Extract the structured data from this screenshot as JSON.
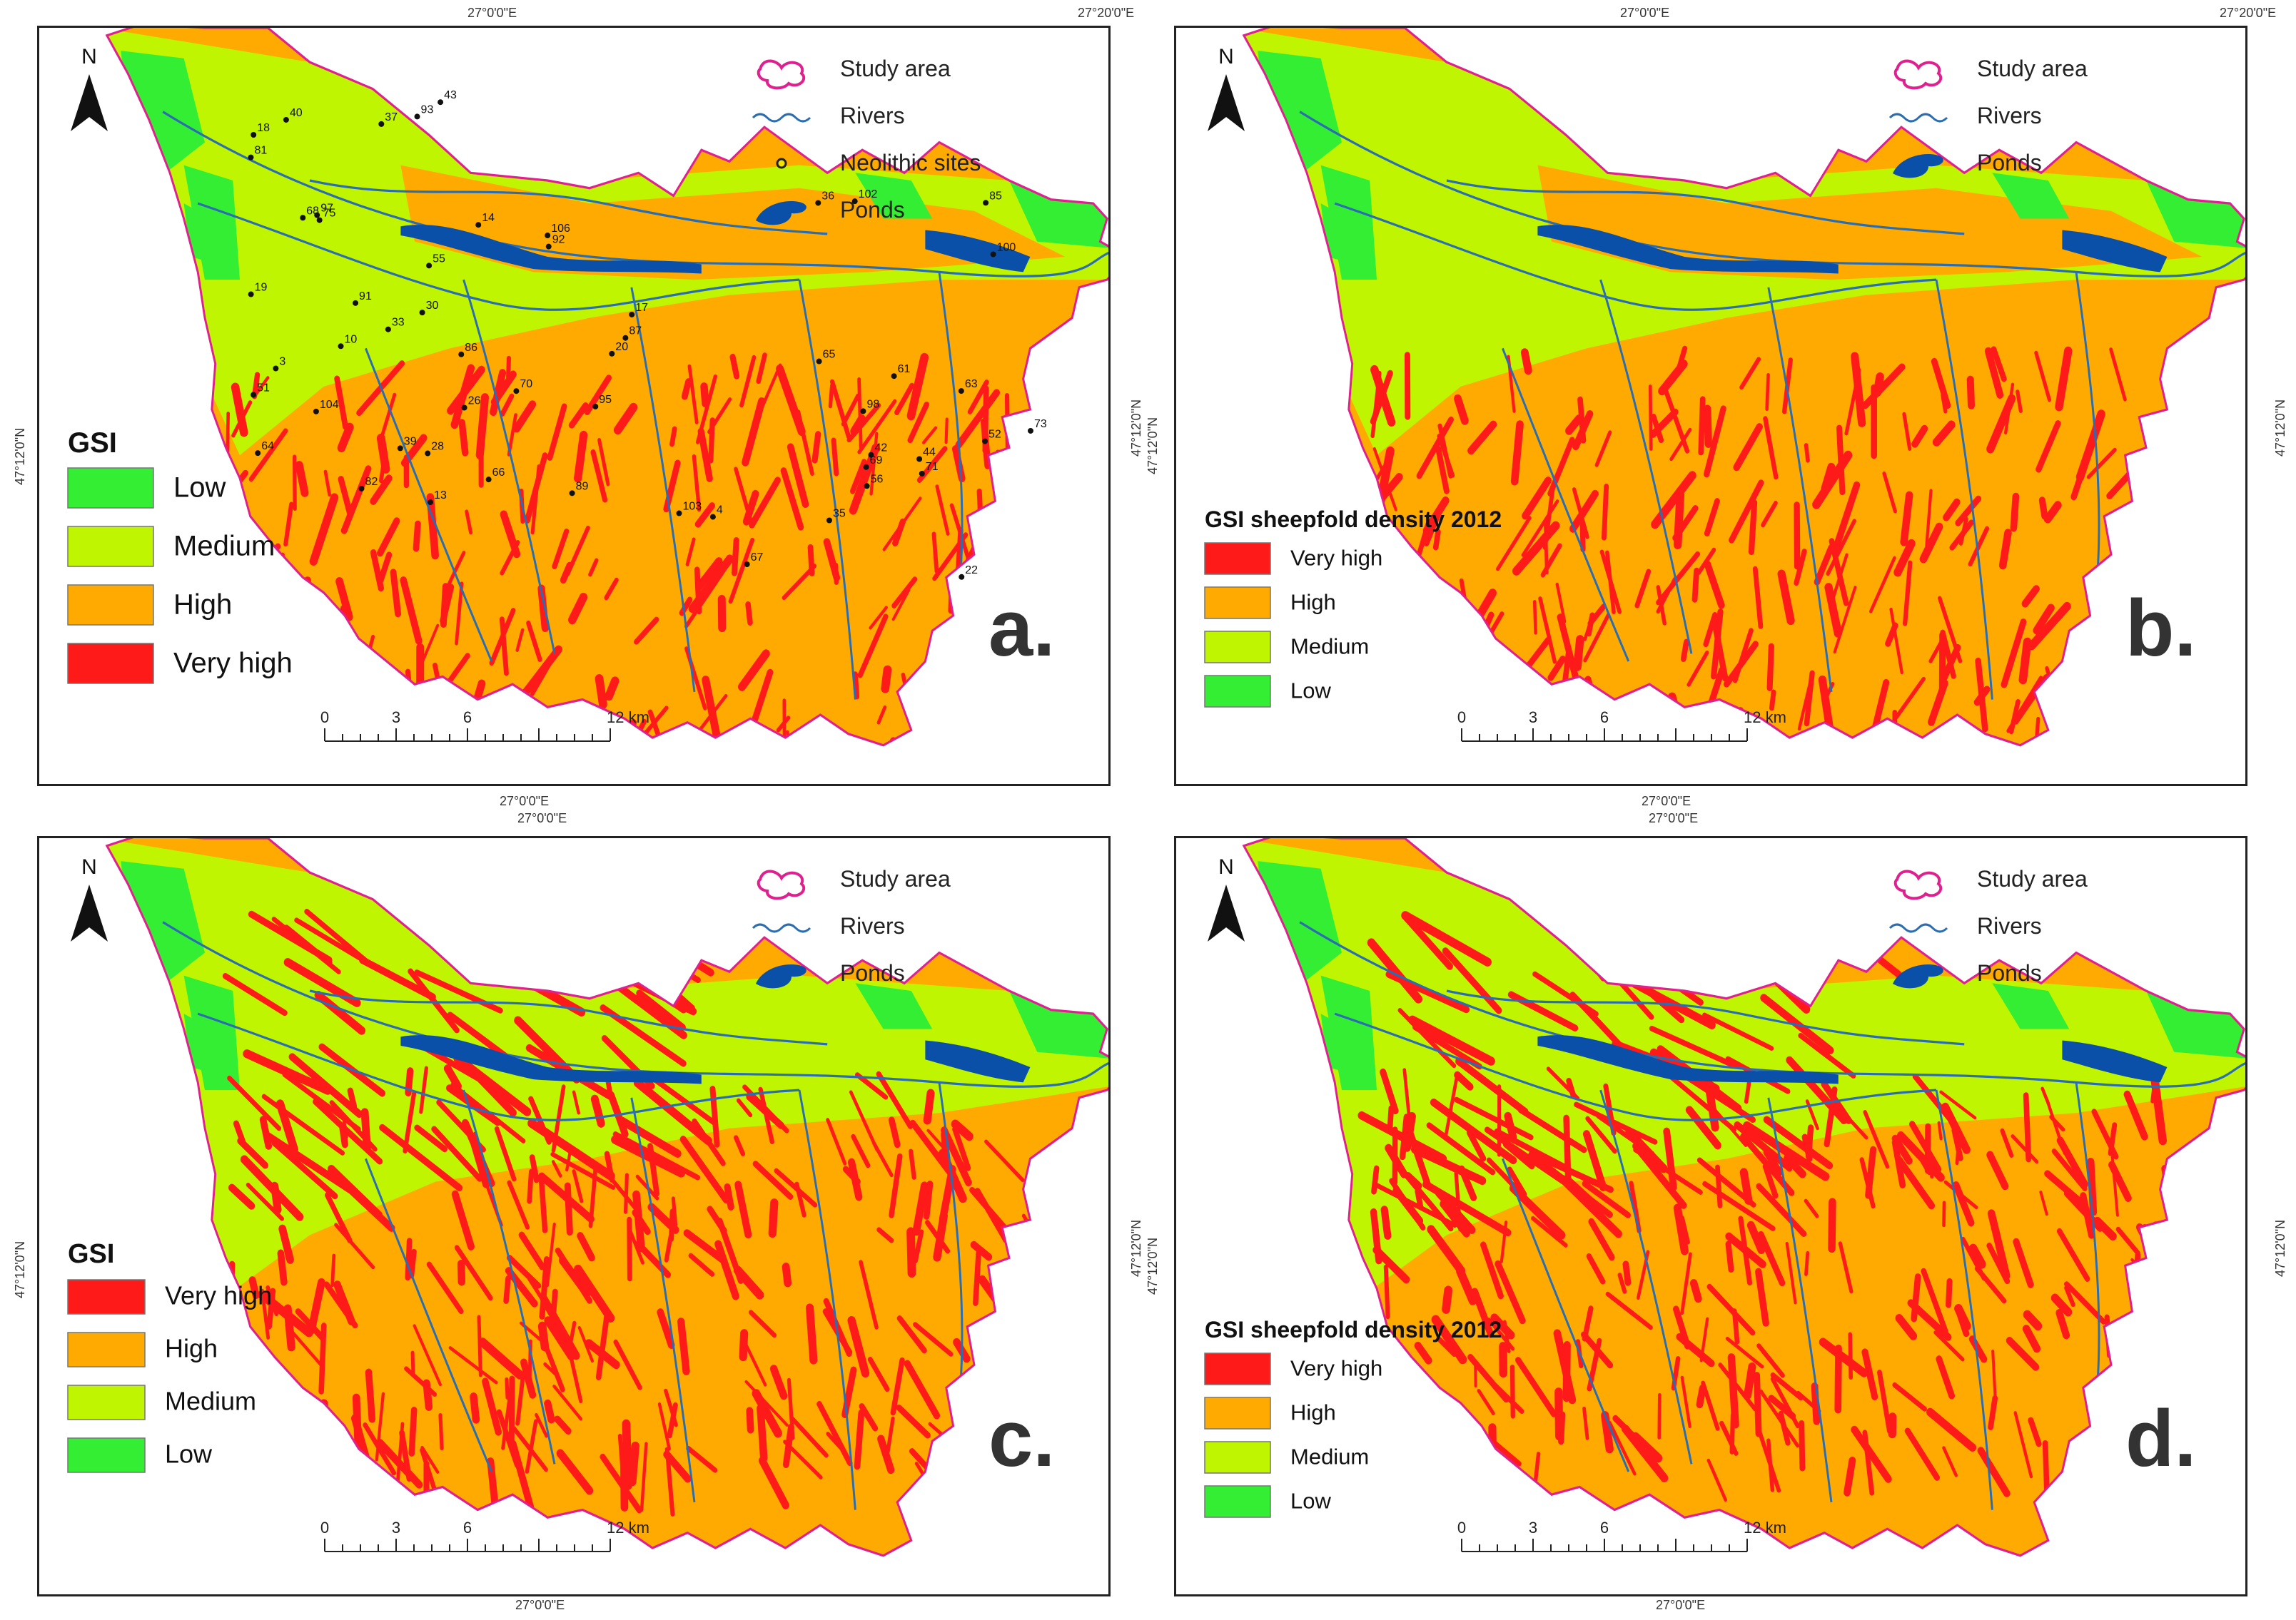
{
  "colors": {
    "low": "#33ee33",
    "medium": "#bff500",
    "high": "#ffaa00",
    "very_high": "#ff1a1a",
    "study_area": "#e0208f",
    "rivers": "#2a6db0",
    "ponds": "#0a4fa8",
    "sites": "#f2e300"
  },
  "icons": [
    "north-arrow-icon",
    "study-area-symbol-icon",
    "rivers-symbol-icon",
    "ponds-symbol-icon",
    "neolithic-site-symbol-icon"
  ],
  "coords": {
    "top_left": "27°0'0\"E",
    "top_right": "27°20'0\"E",
    "mid_label": "27°0'0\"E",
    "bottom": "27°0'0\"E",
    "lat": "47°12'0\"N"
  },
  "north": "N",
  "scale": {
    "ticks": [
      "0",
      "3",
      "6",
      "12 km"
    ]
  },
  "panels": [
    {
      "id": "a",
      "letter": "a.",
      "map_legend": [
        "Study area",
        "Rivers",
        "Neolithic sites",
        "Ponds"
      ],
      "gsi_title": "GSI",
      "classes": [
        "Low",
        "Medium",
        "High",
        "Very high"
      ],
      "site_labels": [
        "33",
        "30",
        "64",
        "40",
        "75",
        "39",
        "51",
        "37",
        "68",
        "82",
        "81",
        "19",
        "18",
        "28",
        "104",
        "55",
        "10",
        "91",
        "97",
        "3",
        "43",
        "93",
        "20",
        "52",
        "36",
        "106",
        "42",
        "26",
        "92",
        "61",
        "67",
        "35",
        "87",
        "95",
        "63",
        "71",
        "69",
        "70",
        "4",
        "66",
        "100",
        "102",
        "22",
        "103",
        "44",
        "89",
        "13",
        "14",
        "65",
        "86",
        "73",
        "17",
        "85",
        "98",
        "56"
      ]
    },
    {
      "id": "b",
      "letter": "b.",
      "map_legend": [
        "Study area",
        "Rivers",
        "Ponds"
      ],
      "gsi_title": "GSI sheepfold density 2012",
      "classes": [
        "Very high",
        "High",
        "Medium",
        "Low"
      ]
    },
    {
      "id": "c",
      "letter": "c.",
      "map_legend": [
        "Study area",
        "Rivers",
        "Ponds"
      ],
      "gsi_title": "GSI",
      "classes": [
        "Very high",
        "High",
        "Medium",
        "Low"
      ]
    },
    {
      "id": "d",
      "letter": "d.",
      "map_legend": [
        "Study area",
        "Rivers",
        "Ponds"
      ],
      "gsi_title": "GSI sheepfold density 2012",
      "classes": [
        "Very high",
        "High",
        "Medium",
        "Low"
      ]
    }
  ]
}
